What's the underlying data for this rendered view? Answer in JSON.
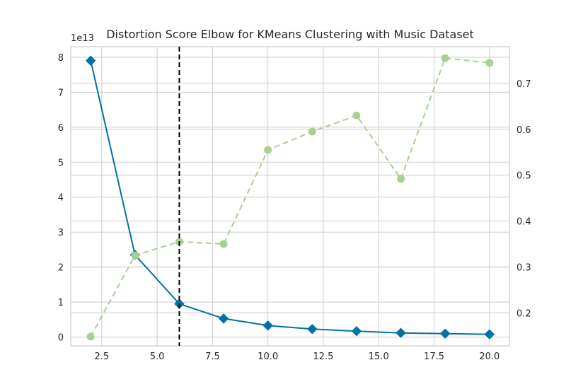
{
  "chart_data": {
    "type": "line",
    "title": "Distortion Score Elbow for KMeans Clustering with Music Dataset",
    "exponent_label": "1e13",
    "x": [
      2,
      4,
      6,
      8,
      10,
      12,
      14,
      16,
      18,
      20
    ],
    "xlim": [
      1.1,
      20.9
    ],
    "xticks": [
      "2.5",
      "5.0",
      "7.5",
      "10.0",
      "12.5",
      "15.0",
      "17.5",
      "20.0"
    ],
    "xtick_values": [
      2.5,
      5.0,
      7.5,
      10.0,
      12.5,
      15.0,
      17.5,
      20.0
    ],
    "series": [
      {
        "axis": "left",
        "color": "#0072a6",
        "marker": "diamond",
        "line": "solid",
        "values": [
          7.9,
          2.35,
          0.95,
          0.53,
          0.33,
          0.23,
          0.17,
          0.12,
          0.1,
          0.08
        ]
      },
      {
        "axis": "right",
        "color": "#a9cf93",
        "marker": "circle",
        "line": "dashed",
        "values": [
          0.148,
          0.325,
          0.355,
          0.35,
          0.555,
          0.595,
          0.63,
          0.492,
          0.755,
          0.745
        ]
      }
    ],
    "left_axis": {
      "ylim": [
        -0.25,
        8.3
      ],
      "ticks": [
        "0",
        "1",
        "2",
        "3",
        "4",
        "5",
        "6",
        "7",
        "8"
      ],
      "tick_values": [
        0,
        1,
        2,
        3,
        4,
        5,
        6,
        7,
        8
      ]
    },
    "right_axis": {
      "ylim": [
        0.128,
        0.78
      ],
      "ticks": [
        "0.2",
        "0.3",
        "0.4",
        "0.5",
        "0.6",
        "0.7"
      ],
      "tick_values": [
        0.2,
        0.3,
        0.4,
        0.5,
        0.6,
        0.7
      ]
    },
    "elbow_k": 6,
    "elbow_line_color": "#000000",
    "grid": true
  }
}
